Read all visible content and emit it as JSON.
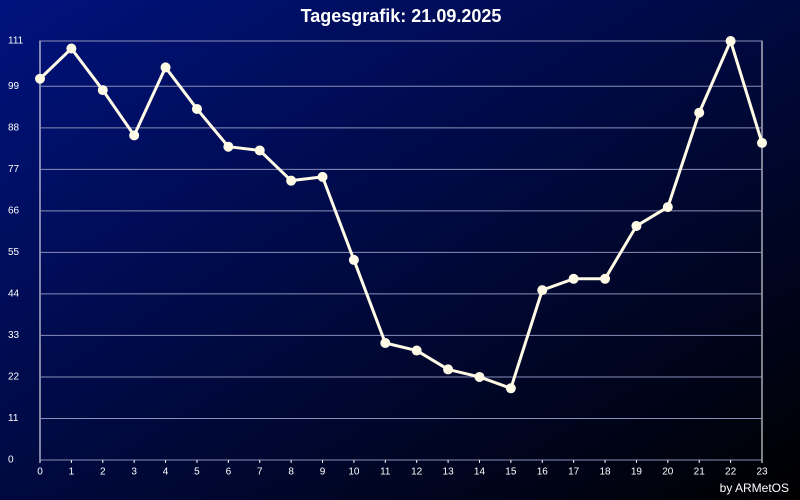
{
  "chart_data": {
    "type": "line",
    "title": "Tagesgrafik: 21.09.2025",
    "footer": "by ARMetOS",
    "x": [
      0,
      1,
      2,
      3,
      4,
      5,
      6,
      7,
      8,
      9,
      10,
      11,
      12,
      13,
      14,
      15,
      16,
      17,
      18,
      19,
      20,
      21,
      22,
      23
    ],
    "values": [
      101,
      109,
      98,
      86,
      104,
      93,
      83,
      82,
      74,
      75,
      53,
      31,
      29,
      24,
      22,
      19,
      45,
      48,
      48,
      62,
      67,
      92,
      111,
      84
    ],
    "color": "#fffbe6",
    "xlim": [
      0,
      23
    ],
    "xticks": [
      0,
      1,
      2,
      3,
      4,
      5,
      6,
      7,
      8,
      9,
      10,
      11,
      12,
      13,
      14,
      15,
      16,
      17,
      18,
      19,
      20,
      21,
      22,
      23
    ],
    "ylim": [
      0,
      111
    ],
    "yticks": [
      0,
      11,
      22,
      33,
      44,
      55,
      66,
      77,
      88,
      99,
      111
    ],
    "grid": true
  }
}
